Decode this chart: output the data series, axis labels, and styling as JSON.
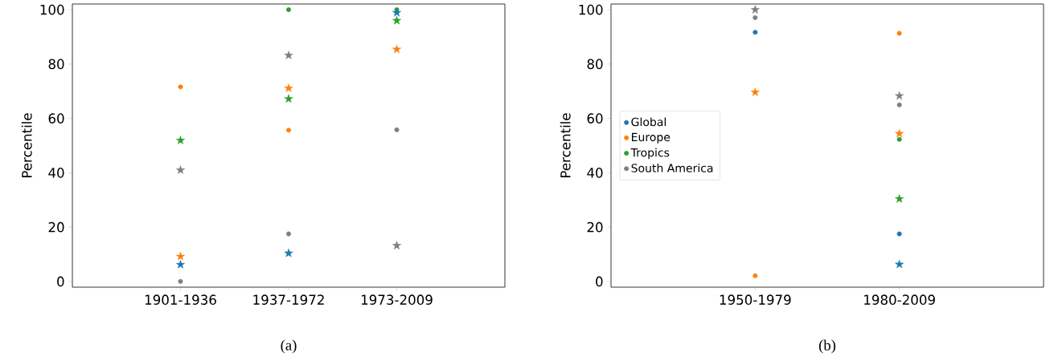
{
  "chart_data": [
    {
      "type": "scatter",
      "ylabel": "Percentile",
      "categories": [
        "1901-1936",
        "1937-1972",
        "1973-2009"
      ],
      "ylim": [
        -2.1,
        102.1
      ],
      "yticks": [
        0,
        20,
        40,
        60,
        80,
        100
      ],
      "grid": false,
      "legend": false,
      "annotations": [
        "(a)"
      ],
      "series": [
        {
          "color": "#ff7f0e",
          "marker": "circle",
          "values": [
            71.6,
            55.7,
            null
          ]
        },
        {
          "color": "#2ca02c",
          "marker": "circle",
          "values": [
            null,
            100,
            100
          ]
        },
        {
          "color": "#7f7f7f",
          "marker": "circle",
          "values": [
            0,
            17.5,
            55.8
          ]
        },
        {
          "color": "#1f77b4",
          "marker": "star",
          "values": [
            6.2,
            10.4,
            98.9
          ]
        },
        {
          "color": "#ff7f0e",
          "marker": "star",
          "values": [
            9.2,
            71.1,
            85.4
          ]
        },
        {
          "color": "#2ca02c",
          "marker": "star",
          "values": [
            51.9,
            67.2,
            96.0
          ]
        },
        {
          "color": "#7f7f7f",
          "marker": "star",
          "values": [
            41.0,
            83.2,
            13.2
          ]
        }
      ]
    },
    {
      "type": "scatter",
      "ylabel": "Percentile",
      "categories": [
        "1950-1979",
        "1980-2009"
      ],
      "ylim": [
        -2.1,
        102.1
      ],
      "yticks": [
        0,
        20,
        40,
        60,
        80,
        100
      ],
      "grid": false,
      "legend": "center left",
      "annotations": [
        "(b)"
      ],
      "series": [
        {
          "name": "Global",
          "color": "#1f77b4",
          "marker": "circle",
          "values": [
            91.7,
            17.5
          ]
        },
        {
          "name": "Europe",
          "color": "#ff7f0e",
          "marker": "circle",
          "values": [
            2.1,
            91.3
          ]
        },
        {
          "name": "Tropics",
          "color": "#2ca02c",
          "marker": "circle",
          "values": [
            null,
            52.3
          ]
        },
        {
          "name": "South America",
          "color": "#7f7f7f",
          "marker": "circle",
          "values": [
            97.1,
            65.0
          ]
        },
        {
          "color": "#1f77b4",
          "marker": "star",
          "values": [
            null,
            6.3
          ]
        },
        {
          "color": "#ff7f0e",
          "marker": "star",
          "values": [
            69.6,
            54.4
          ]
        },
        {
          "color": "#2ca02c",
          "marker": "star",
          "values": [
            null,
            30.4
          ]
        },
        {
          "color": "#7f7f7f",
          "marker": "star",
          "values": [
            100,
            68.3
          ]
        }
      ]
    }
  ]
}
